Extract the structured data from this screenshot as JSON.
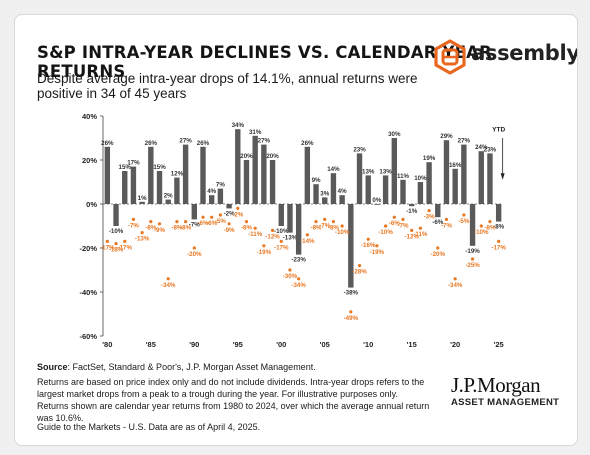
{
  "header": {
    "title": "S&P INTRA-YEAR DECLINES VS. CALENDAR YEAR RETURNS",
    "subtitle": "Despite average intra-year drops of 14.1%, annual returns were positive in 34 of 45 years",
    "logo_text": "assembly"
  },
  "footer": {
    "source_label": "Source",
    "source_text": ": FactSet, Standard & Poor's, J.P. Morgan Asset Management.",
    "notes": "Returns are based on price index only and do not include dividends. Intra-year drops refers to the largest market drops from a peak to a trough during the year. For illustrative purposes only. Returns shown are calendar year returns from 1980 to 2024, over which the average annual return was 10.6%.",
    "guide": "Guide to the Markets - U.S. Data are as of April 4, 2025.",
    "jpm_name": "J.P.Morgan",
    "jpm_sub": "ASSET MANAGEMENT"
  },
  "colors": {
    "bar": "#5a5a5a",
    "decline": "#e87722",
    "text": "#1a1a1a",
    "logo": "#e8661e"
  },
  "chart_data": {
    "type": "bar",
    "ylim": [
      -60,
      40
    ],
    "yticks": [
      "40%",
      "20%",
      "0%",
      "-20%",
      "-40%",
      "-60%"
    ],
    "ytick_values": [
      40,
      20,
      0,
      -20,
      -40,
      -60
    ],
    "xtick_labels": [
      "'80",
      "'85",
      "'90",
      "'95",
      "'00",
      "'05",
      "'10",
      "'15",
      "'20",
      "'25"
    ],
    "xtick_years": [
      1980,
      1985,
      1990,
      1995,
      2000,
      2005,
      2010,
      2015,
      2020,
      2025
    ],
    "years": [
      1980,
      1981,
      1982,
      1983,
      1984,
      1985,
      1986,
      1987,
      1988,
      1989,
      1990,
      1991,
      1992,
      1993,
      1994,
      1995,
      1996,
      1997,
      1998,
      1999,
      2000,
      2001,
      2002,
      2003,
      2004,
      2005,
      2006,
      2007,
      2008,
      2009,
      2010,
      2011,
      2012,
      2013,
      2014,
      2015,
      2016,
      2017,
      2018,
      2019,
      2020,
      2021,
      2022,
      2023,
      2024,
      2025
    ],
    "annual_returns": [
      26,
      -10,
      15,
      17,
      1,
      26,
      15,
      2,
      12,
      27,
      -7,
      26,
      4,
      7,
      -2,
      34,
      20,
      31,
      27,
      20,
      -10,
      -13,
      -23,
      26,
      9,
      3,
      14,
      4,
      -38,
      23,
      13,
      0,
      13,
      30,
      11,
      -1,
      10,
      19,
      -6,
      29,
      16,
      27,
      -19,
      24,
      23,
      -8
    ],
    "annual_labels": [
      "26%",
      "-10%",
      "15%",
      "17%",
      "1%",
      "26%",
      "15%",
      "2%",
      "12%",
      "27%",
      "-7%",
      "26%",
      "4%",
      "7%",
      "-2%",
      "34%",
      "20%",
      "31%",
      "27%",
      "20%",
      "-10%",
      "-13%",
      "-23%",
      "26%",
      "9%",
      "3%",
      "14%",
      "4%",
      "-38%",
      "23%",
      "13%",
      "0%",
      "13%",
      "30%",
      "11%",
      "-1%",
      "10%",
      "19%",
      "-6%",
      "29%",
      "16%",
      "27%",
      "-19%",
      "24%",
      "23%",
      "-8%"
    ],
    "intra_year_declines": [
      -17,
      -18,
      -17,
      -7,
      -13,
      -8,
      -9,
      -34,
      -8,
      -8,
      -20,
      -6,
      -6,
      -5,
      -9,
      -2,
      -8,
      -11,
      -19,
      -12,
      -17,
      -30,
      -34,
      -14,
      -8,
      -7,
      -8,
      -10,
      -49,
      -28,
      -16,
      -19,
      -10,
      -6,
      -7,
      -12,
      -11,
      -3,
      -20,
      -7,
      -34,
      -5,
      -25,
      -10,
      -8,
      -17
    ],
    "intra_year_labels": [
      "-17%",
      "-18%",
      "-17%",
      "-7%",
      "-13%",
      "-8%",
      "-9%",
      "-34%",
      "-8%",
      "-8%",
      "-20%",
      "-6%",
      "-6%",
      "-5%",
      "-9%",
      "-2%",
      "-8%",
      "-11%",
      "-19%",
      "-12%",
      "-17%",
      "-30%",
      "-34%",
      "-14%",
      "-8%",
      "-7%",
      "-8%",
      "-10%",
      "-49%",
      "-28%",
      "-16%",
      "-19%",
      "-10%",
      "-6%",
      "-7%",
      "-12%",
      "-11%",
      "-3%",
      "-20%",
      "-7%",
      "-34%",
      "-5%",
      "-25%",
      "-10%",
      "-8%",
      "-17%"
    ],
    "ytd_label": "YTD",
    "ytd_year": 2025
  }
}
